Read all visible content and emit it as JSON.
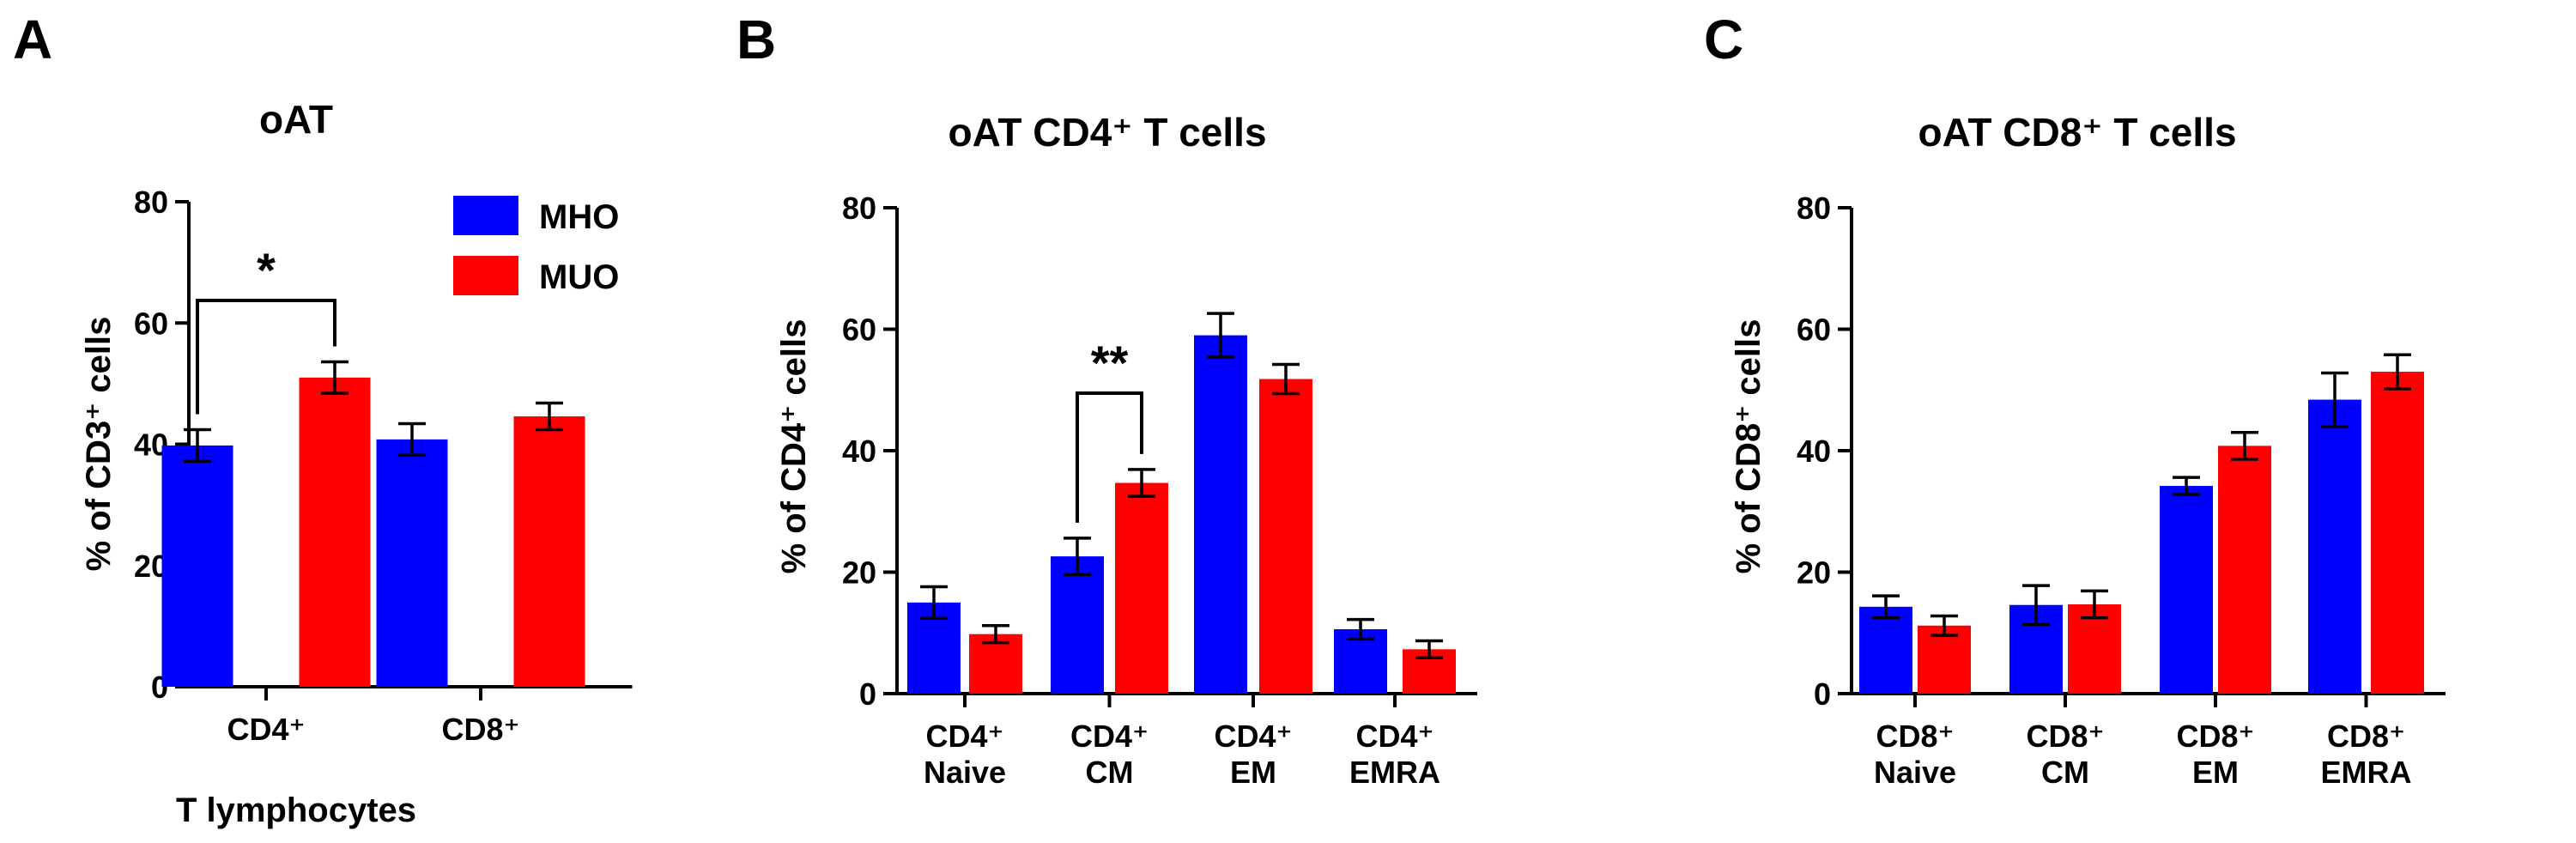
{
  "colors": {
    "MHO": "#0000ff",
    "MUO": "#ff0000"
  },
  "chart_data": [
    {
      "panel": "A",
      "type": "bar",
      "title": "oAT",
      "ylabel": "% of CD3⁺ cells",
      "xlabel": "T lymphocytes",
      "ylim": [
        0,
        80
      ],
      "yticks": [
        0,
        20,
        40,
        60,
        80
      ],
      "categories": [
        {
          "line1": "CD4⁺",
          "line2": ""
        },
        {
          "line1": "CD8⁺",
          "line2": ""
        }
      ],
      "series": [
        {
          "name": "MHO",
          "values": [
            39.8,
            40.8
          ],
          "errors": [
            2.6,
            2.6
          ]
        },
        {
          "name": "MUO",
          "values": [
            51.0,
            44.6
          ],
          "errors": [
            2.6,
            2.2
          ]
        }
      ],
      "legend": {
        "position": "top-right",
        "entries": [
          "MHO",
          "MUO"
        ]
      },
      "annotations": [
        {
          "text": "*",
          "category": 0
        }
      ]
    },
    {
      "panel": "B",
      "type": "bar",
      "title": "oAT CD4⁺ T cells",
      "ylabel": "% of CD4⁺ cells",
      "xlabel": "",
      "ylim": [
        0,
        80
      ],
      "yticks": [
        0,
        20,
        40,
        60,
        80
      ],
      "categories": [
        {
          "line1": "CD4⁺",
          "line2": "Naive"
        },
        {
          "line1": "CD4⁺",
          "line2": "CM"
        },
        {
          "line1": "CD4⁺",
          "line2": "EM"
        },
        {
          "line1": "CD4⁺",
          "line2": "EMRA"
        }
      ],
      "series": [
        {
          "name": "MHO",
          "values": [
            15.0,
            22.6,
            59.0,
            10.6
          ],
          "errors": [
            2.6,
            3.0,
            3.6,
            1.6
          ]
        },
        {
          "name": "MUO",
          "values": [
            9.8,
            34.7,
            51.8,
            7.3
          ],
          "errors": [
            1.4,
            2.2,
            2.4,
            1.4
          ]
        }
      ],
      "annotations": [
        {
          "text": "**",
          "category": 1
        }
      ]
    },
    {
      "panel": "C",
      "type": "bar",
      "title": "oAT CD8⁺ T cells",
      "ylabel": "% of CD8⁺ cells",
      "xlabel": "",
      "ylim": [
        0,
        80
      ],
      "yticks": [
        0,
        20,
        40,
        60,
        80
      ],
      "categories": [
        {
          "line1": "CD8⁺",
          "line2": "Naive"
        },
        {
          "line1": "CD8⁺",
          "line2": "CM"
        },
        {
          "line1": "CD8⁺",
          "line2": "EM"
        },
        {
          "line1": "CD8⁺",
          "line2": "EMRA"
        }
      ],
      "series": [
        {
          "name": "MHO",
          "values": [
            14.3,
            14.6,
            34.2,
            48.4
          ],
          "errors": [
            1.8,
            3.2,
            1.4,
            4.4
          ]
        },
        {
          "name": "MUO",
          "values": [
            11.2,
            14.7,
            40.8,
            53.0
          ],
          "errors": [
            1.6,
            2.2,
            2.2,
            2.8
          ]
        }
      ],
      "annotations": []
    }
  ]
}
